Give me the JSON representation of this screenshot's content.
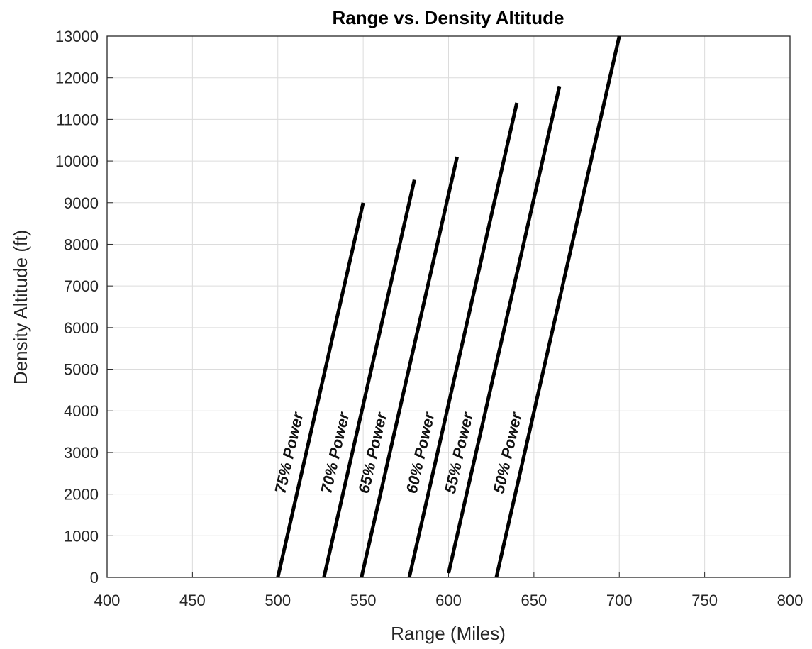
{
  "chart_data": {
    "type": "line",
    "title": "Range vs. Density Altitude",
    "xlabel": "Range (Miles)",
    "ylabel": "Density Altitude (ft)",
    "xlim": [
      400,
      800
    ],
    "ylim": [
      0,
      13000
    ],
    "xticks": [
      "400",
      "450",
      "500",
      "550",
      "600",
      "650",
      "700",
      "750",
      "800"
    ],
    "yticks": [
      "0",
      "1000",
      "2000",
      "3000",
      "4000",
      "5000",
      "6000",
      "7000",
      "8000",
      "9000",
      "10000",
      "11000",
      "12000",
      "13000"
    ],
    "grid": true,
    "line_color": "#000000",
    "series": [
      {
        "name": "75% Power",
        "x": [
          500,
          550
        ],
        "y": [
          0,
          9000
        ]
      },
      {
        "name": "70% Power",
        "x": [
          527,
          580
        ],
        "y": [
          0,
          9550
        ]
      },
      {
        "name": "65% Power",
        "x": [
          549,
          605
        ],
        "y": [
          0,
          10100
        ]
      },
      {
        "name": "60% Power",
        "x": [
          577,
          640
        ],
        "y": [
          0,
          11400
        ]
      },
      {
        "name": "55% Power",
        "x": [
          600,
          665
        ],
        "y": [
          100,
          11800
        ]
      },
      {
        "name": "50% Power",
        "x": [
          628,
          700
        ],
        "y": [
          0,
          13000
        ]
      }
    ]
  }
}
